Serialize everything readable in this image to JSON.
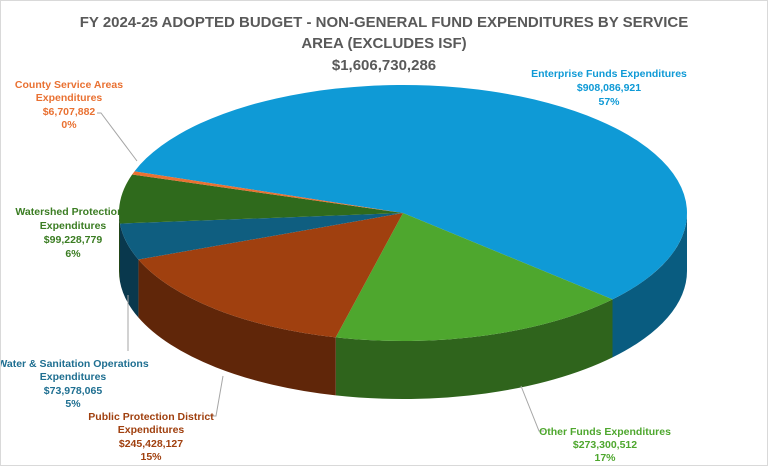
{
  "chart_data": {
    "type": "pie",
    "title": "FY 2024-25 ADOPTED BUDGET -  NON-GENERAL FUND EXPENDITURES BY SERVICE AREA (EXCLUDES ISF)",
    "title_line1": "FY 2024-25 ADOPTED BUDGET -  NON-GENERAL FUND EXPENDITURES BY SERVICE",
    "title_line2": "AREA (EXCLUDES ISF)",
    "total": "$1,606,730,286",
    "slices": [
      {
        "name": "Enterprise Funds Expenditures",
        "value": 908086921,
        "value_label": "$908,086,921",
        "percent": "57%",
        "color": "#0f9ad6"
      },
      {
        "name": "Other Funds Expenditures",
        "value": 273300512,
        "value_label": "$273,300,512",
        "percent": "17%",
        "color": "#4ea72e"
      },
      {
        "name": "Public Protection District Expenditures",
        "value": 245428127,
        "value_label": "$245,428,127",
        "percent": "15%",
        "color": "#a0400f"
      },
      {
        "name": "Water & Sanitation Operations Expenditures",
        "value": 73978065,
        "value_label": "$73,978,065",
        "percent": "5%",
        "color": "#0f5e80"
      },
      {
        "name": "Watershed Protection District Expenditures",
        "value": 99228779,
        "value_label": "$99,228,779",
        "percent": "6%",
        "color": "#2f6a1c"
      },
      {
        "name": "County Service Areas Expenditures",
        "value": 6707882,
        "value_label": "$6,707,882",
        "percent": "0%",
        "color": "#e97132"
      }
    ],
    "labels": [
      {
        "l1": "Enterprise Funds Expenditures",
        "l2": "$908,086,921",
        "l3": "57%",
        "color": "#0f9ad6"
      },
      {
        "l1": "Other Funds Expenditures",
        "l2": "$273,300,512",
        "l3": "17%",
        "color": "#4ea72e"
      },
      {
        "l1": "Public Protection District",
        "l1b": "Expenditures",
        "l2": "$245,428,127",
        "l3": "15%",
        "color": "#a0400f"
      },
      {
        "l1": "Water & Sanitation Operations",
        "l1b": "Expenditures",
        "l2": "$73,978,065",
        "l3": "5%",
        "color": "#1f6f91"
      },
      {
        "l1": "Watershed Protection District",
        "l1b": "Expenditures",
        "l2": "$99,228,779",
        "l3": "6%",
        "color": "#3b7d23"
      },
      {
        "l1": "County Service Areas",
        "l1b": "Expenditures",
        "l2": "$6,707,882",
        "l3": "0%",
        "color": "#e97132"
      }
    ],
    "legend": "none"
  }
}
